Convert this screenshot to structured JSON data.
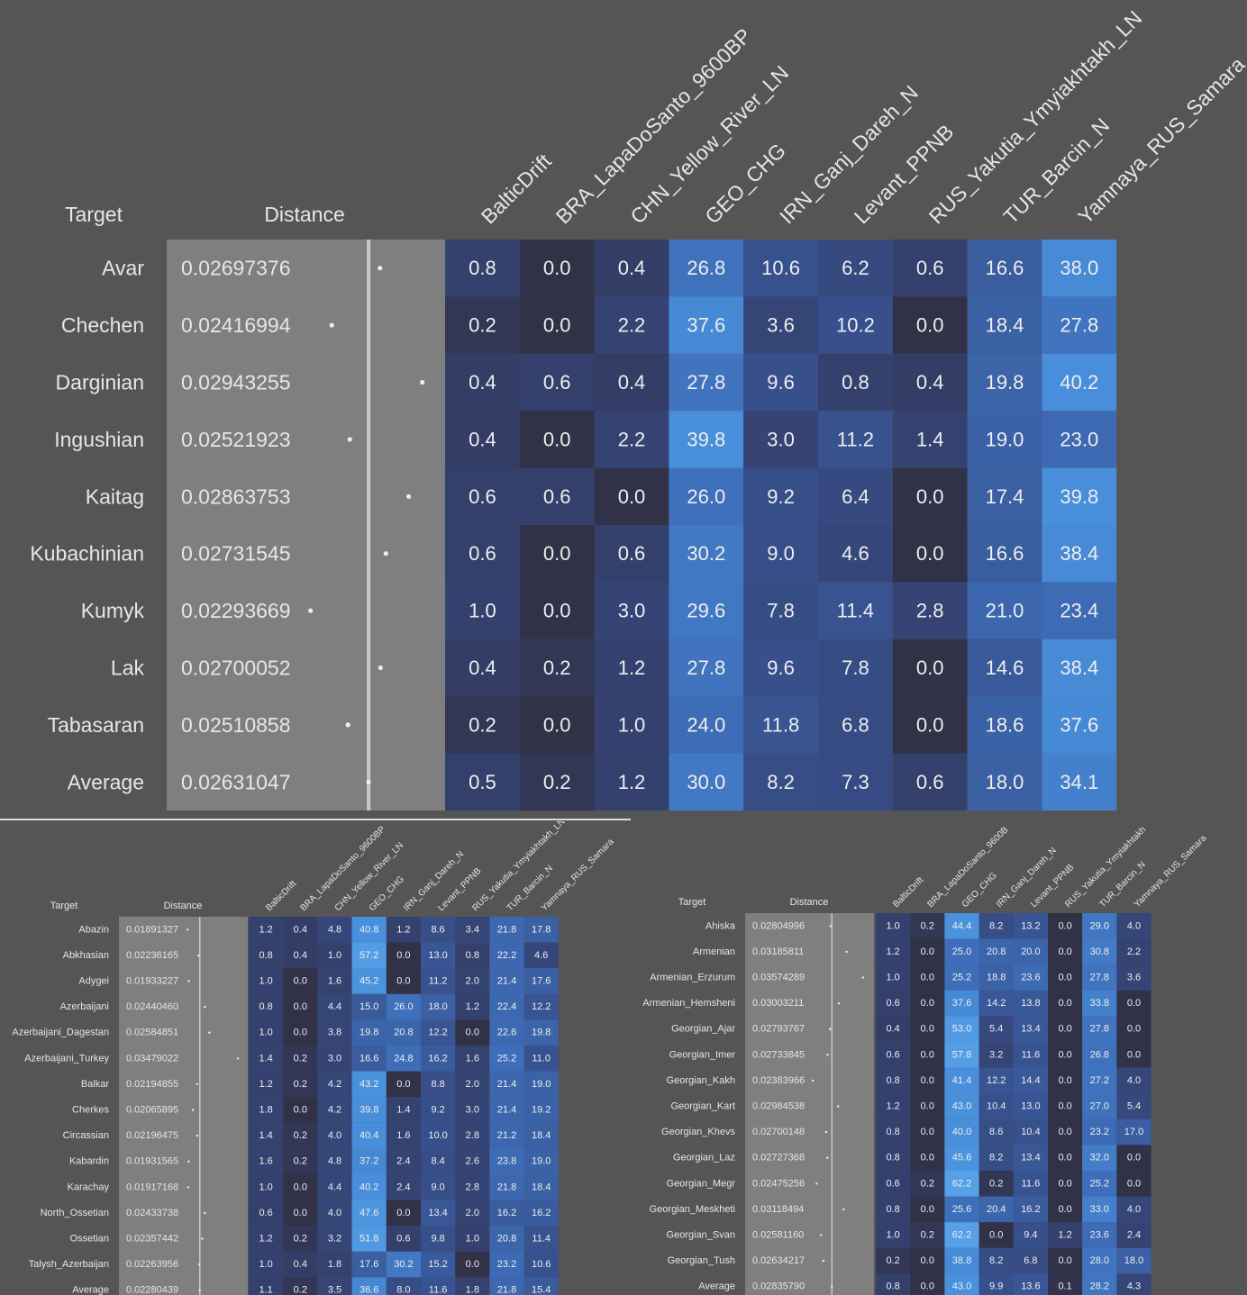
{
  "chart_data": [
    {
      "type": "table",
      "column_headers": {
        "target": "Target",
        "distance": "Distance"
      },
      "columns": [
        "BalticDrift",
        "BRA_LapaDoSanto_9600BP",
        "CHN_Yellow_River_LN",
        "GEO_CHG",
        "IRN_Ganj_Dareh_N",
        "Levant_PPNB",
        "RUS_Yakutia_Ymyiakhtakh_LN",
        "TUR_Barcin_N",
        "Yamnaya_RUS_Samara"
      ],
      "rows": [
        {
          "target": "Avar",
          "distance": "0.02697376",
          "values": [
            "0.8",
            "0.0",
            "0.4",
            "26.8",
            "10.6",
            "6.2",
            "0.6",
            "16.6",
            "38.0"
          ]
        },
        {
          "target": "Chechen",
          "distance": "0.02416994",
          "values": [
            "0.2",
            "0.0",
            "2.2",
            "37.6",
            "3.6",
            "10.2",
            "0.0",
            "18.4",
            "27.8"
          ]
        },
        {
          "target": "Darginian",
          "distance": "0.02943255",
          "values": [
            "0.4",
            "0.6",
            "0.4",
            "27.8",
            "9.6",
            "0.8",
            "0.4",
            "19.8",
            "40.2"
          ]
        },
        {
          "target": "Ingushian",
          "distance": "0.02521923",
          "values": [
            "0.4",
            "0.0",
            "2.2",
            "39.8",
            "3.0",
            "11.2",
            "1.4",
            "19.0",
            "23.0"
          ]
        },
        {
          "target": "Kaitag",
          "distance": "0.02863753",
          "values": [
            "0.6",
            "0.6",
            "0.0",
            "26.0",
            "9.2",
            "6.4",
            "0.0",
            "17.4",
            "39.8"
          ]
        },
        {
          "target": "Kubachinian",
          "distance": "0.02731545",
          "values": [
            "0.6",
            "0.0",
            "0.6",
            "30.2",
            "9.0",
            "4.6",
            "0.0",
            "16.6",
            "38.4"
          ]
        },
        {
          "target": "Kumyk",
          "distance": "0.02293669",
          "values": [
            "1.0",
            "0.0",
            "3.0",
            "29.6",
            "7.8",
            "11.4",
            "2.8",
            "21.0",
            "23.4"
          ]
        },
        {
          "target": "Lak",
          "distance": "0.02700052",
          "values": [
            "0.4",
            "0.2",
            "1.2",
            "27.8",
            "9.6",
            "7.8",
            "0.0",
            "14.6",
            "38.4"
          ]
        },
        {
          "target": "Tabasaran",
          "distance": "0.02510858",
          "values": [
            "0.2",
            "0.0",
            "1.0",
            "24.0",
            "11.8",
            "6.8",
            "0.0",
            "18.6",
            "37.6"
          ]
        },
        {
          "target": "Average",
          "distance": "0.02631047",
          "values": [
            "0.5",
            "0.2",
            "1.2",
            "30.0",
            "8.2",
            "7.3",
            "0.6",
            "18.0",
            "34.1"
          ]
        }
      ]
    },
    {
      "type": "table",
      "column_headers": {
        "target": "Target",
        "distance": "Distance"
      },
      "columns": [
        "BalticDrift",
        "BRA_LapaDoSanto_9600BP",
        "CHN_Yellow_River_LN",
        "GEO_CHG",
        "IRN_Ganj_Dareh_N",
        "Levant_PPNB",
        "RUS_Yakutia_Ymyiakhtakh_LN",
        "TUR_Barcin_N",
        "Yamnaya_RUS_Samara"
      ],
      "rows": [
        {
          "target": "Abazin",
          "distance": "0.01891327",
          "values": [
            "1.2",
            "0.4",
            "4.8",
            "40.8",
            "1.2",
            "8.6",
            "3.4",
            "21.8",
            "17.8"
          ]
        },
        {
          "target": "Abkhasian",
          "distance": "0.02236165",
          "values": [
            "0.8",
            "0.4",
            "1.0",
            "57.2",
            "0.0",
            "13.0",
            "0.8",
            "22.2",
            "4.6"
          ]
        },
        {
          "target": "Adygei",
          "distance": "0.01933227",
          "values": [
            "1.0",
            "0.0",
            "1.6",
            "45.2",
            "0.0",
            "11.2",
            "2.0",
            "21.4",
            "17.6"
          ]
        },
        {
          "target": "Azerbaijani",
          "distance": "0.02440460",
          "values": [
            "0.8",
            "0.0",
            "4.4",
            "15.0",
            "26.0",
            "18.0",
            "1.2",
            "22.4",
            "12.2"
          ]
        },
        {
          "target": "Azerbaijani_Dagestan",
          "distance": "0.02584851",
          "values": [
            "1.0",
            "0.0",
            "3.8",
            "19.8",
            "20.8",
            "12.2",
            "0.0",
            "22.6",
            "19.8"
          ]
        },
        {
          "target": "Azerbaijani_Turkey",
          "distance": "0.03479022",
          "values": [
            "1.4",
            "0.2",
            "3.0",
            "16.6",
            "24.8",
            "16.2",
            "1.6",
            "25.2",
            "11.0"
          ]
        },
        {
          "target": "Balkar",
          "distance": "0.02194855",
          "values": [
            "1.2",
            "0.2",
            "4.2",
            "43.2",
            "0.0",
            "8.8",
            "2.0",
            "21.4",
            "19.0"
          ]
        },
        {
          "target": "Cherkes",
          "distance": "0.02065895",
          "values": [
            "1.8",
            "0.0",
            "4.2",
            "39.8",
            "1.4",
            "9.2",
            "3.0",
            "21.4",
            "19.2"
          ]
        },
        {
          "target": "Circassian",
          "distance": "0.02196475",
          "values": [
            "1.4",
            "0.2",
            "4.0",
            "40.4",
            "1.6",
            "10.0",
            "2.8",
            "21.2",
            "18.4"
          ]
        },
        {
          "target": "Kabardin",
          "distance": "0.01931565",
          "values": [
            "1.6",
            "0.2",
            "4.8",
            "37.2",
            "2.4",
            "8.4",
            "2.6",
            "23.8",
            "19.0"
          ]
        },
        {
          "target": "Karachay",
          "distance": "0.01917168",
          "values": [
            "1.0",
            "0.0",
            "4.4",
            "40.2",
            "2.4",
            "9.0",
            "2.8",
            "21.8",
            "18.4"
          ]
        },
        {
          "target": "North_Ossetian",
          "distance": "0.02433738",
          "values": [
            "0.6",
            "0.0",
            "4.0",
            "47.6",
            "0.0",
            "13.4",
            "2.0",
            "16.2",
            "16.2"
          ]
        },
        {
          "target": "Ossetian",
          "distance": "0.02357442",
          "values": [
            "1.2",
            "0.2",
            "3.2",
            "51.8",
            "0.6",
            "9.8",
            "1.0",
            "20.8",
            "11.4"
          ]
        },
        {
          "target": "Talysh_Azerbaijan",
          "distance": "0.02263956",
          "values": [
            "1.0",
            "0.4",
            "1.8",
            "17.6",
            "30.2",
            "15.2",
            "0.0",
            "23.2",
            "10.6"
          ]
        },
        {
          "target": "Average",
          "distance": "0.02280439",
          "values": [
            "1.1",
            "0.2",
            "3.5",
            "36.6",
            "8.0",
            "11.6",
            "1.8",
            "21.8",
            "15.4"
          ]
        }
      ]
    },
    {
      "type": "table",
      "column_headers": {
        "target": "Target",
        "distance": "Distance"
      },
      "columns": [
        "BalticDrift",
        "BRA_LapaDoSanto_9600B",
        "GEO_CHG",
        "IRN_Ganj_Dareh_N",
        "Levant_PPNB",
        "RUS_Yakutia_Ymyiakhtakh",
        "TUR_Barcin_N",
        "Yamnaya_RUS_Samara"
      ],
      "rows": [
        {
          "target": "Ahiska",
          "distance": "0.02804996",
          "values": [
            "1.0",
            "0.2",
            "44.4",
            "8.2",
            "13.2",
            "0.0",
            "29.0",
            "4.0"
          ]
        },
        {
          "target": "Armenian",
          "distance": "0.03185811",
          "values": [
            "1.2",
            "0.0",
            "25.0",
            "20.8",
            "20.0",
            "0.0",
            "30.8",
            "2.2"
          ]
        },
        {
          "target": "Armenian_Erzurum",
          "distance": "0.03574289",
          "values": [
            "1.0",
            "0.0",
            "25.2",
            "18.8",
            "23.6",
            "0.0",
            "27.8",
            "3.6"
          ]
        },
        {
          "target": "Armenian_Hemsheni",
          "distance": "0.03003211",
          "values": [
            "0.6",
            "0.0",
            "37.6",
            "14.2",
            "13.8",
            "0.0",
            "33.8",
            "0.0"
          ]
        },
        {
          "target": "Georgian_Ajar",
          "distance": "0.02793767",
          "values": [
            "0.4",
            "0.0",
            "53.0",
            "5.4",
            "13.4",
            "0.0",
            "27.8",
            "0.0"
          ]
        },
        {
          "target": "Georgian_Imer",
          "distance": "0.02733845",
          "values": [
            "0.6",
            "0.0",
            "57.8",
            "3.2",
            "11.6",
            "0.0",
            "26.8",
            "0.0"
          ]
        },
        {
          "target": "Georgian_Kakh",
          "distance": "0.02383966",
          "values": [
            "0.8",
            "0.0",
            "41.4",
            "12.2",
            "14.4",
            "0.0",
            "27.2",
            "4.0"
          ]
        },
        {
          "target": "Georgian_Kart",
          "distance": "0.02984538",
          "values": [
            "1.2",
            "0.0",
            "43.0",
            "10.4",
            "13.0",
            "0.0",
            "27.0",
            "5.4"
          ]
        },
        {
          "target": "Georgian_Khevs",
          "distance": "0.02700148",
          "values": [
            "0.8",
            "0.0",
            "40.0",
            "8.6",
            "10.4",
            "0.0",
            "23.2",
            "17.0"
          ]
        },
        {
          "target": "Georgian_Laz",
          "distance": "0.02727368",
          "values": [
            "0.8",
            "0.0",
            "45.6",
            "8.2",
            "13.4",
            "0.0",
            "32.0",
            "0.0"
          ]
        },
        {
          "target": "Georgian_Megr",
          "distance": "0.02475256",
          "values": [
            "0.6",
            "0.2",
            "62.2",
            "0.2",
            "11.6",
            "0.0",
            "25.2",
            "0.0"
          ]
        },
        {
          "target": "Georgian_Meskheti",
          "distance": "0.03118494",
          "values": [
            "0.8",
            "0.0",
            "25.6",
            "20.4",
            "16.2",
            "0.0",
            "33.0",
            "4.0"
          ]
        },
        {
          "target": "Georgian_Svan",
          "distance": "0.02581160",
          "values": [
            "1.0",
            "0.2",
            "62.2",
            "0.0",
            "9.4",
            "1.2",
            "23.6",
            "2.4"
          ]
        },
        {
          "target": "Georgian_Tush",
          "distance": "0.02634217",
          "values": [
            "0.2",
            "0.0",
            "38.8",
            "8.2",
            "6.8",
            "0.0",
            "28.0",
            "18.0"
          ]
        },
        {
          "target": "Average",
          "distance": "0.02835790",
          "values": [
            "0.8",
            "0.0",
            "43.0",
            "9.9",
            "13.6",
            "0.1",
            "28.2",
            "4.3"
          ]
        }
      ]
    }
  ]
}
